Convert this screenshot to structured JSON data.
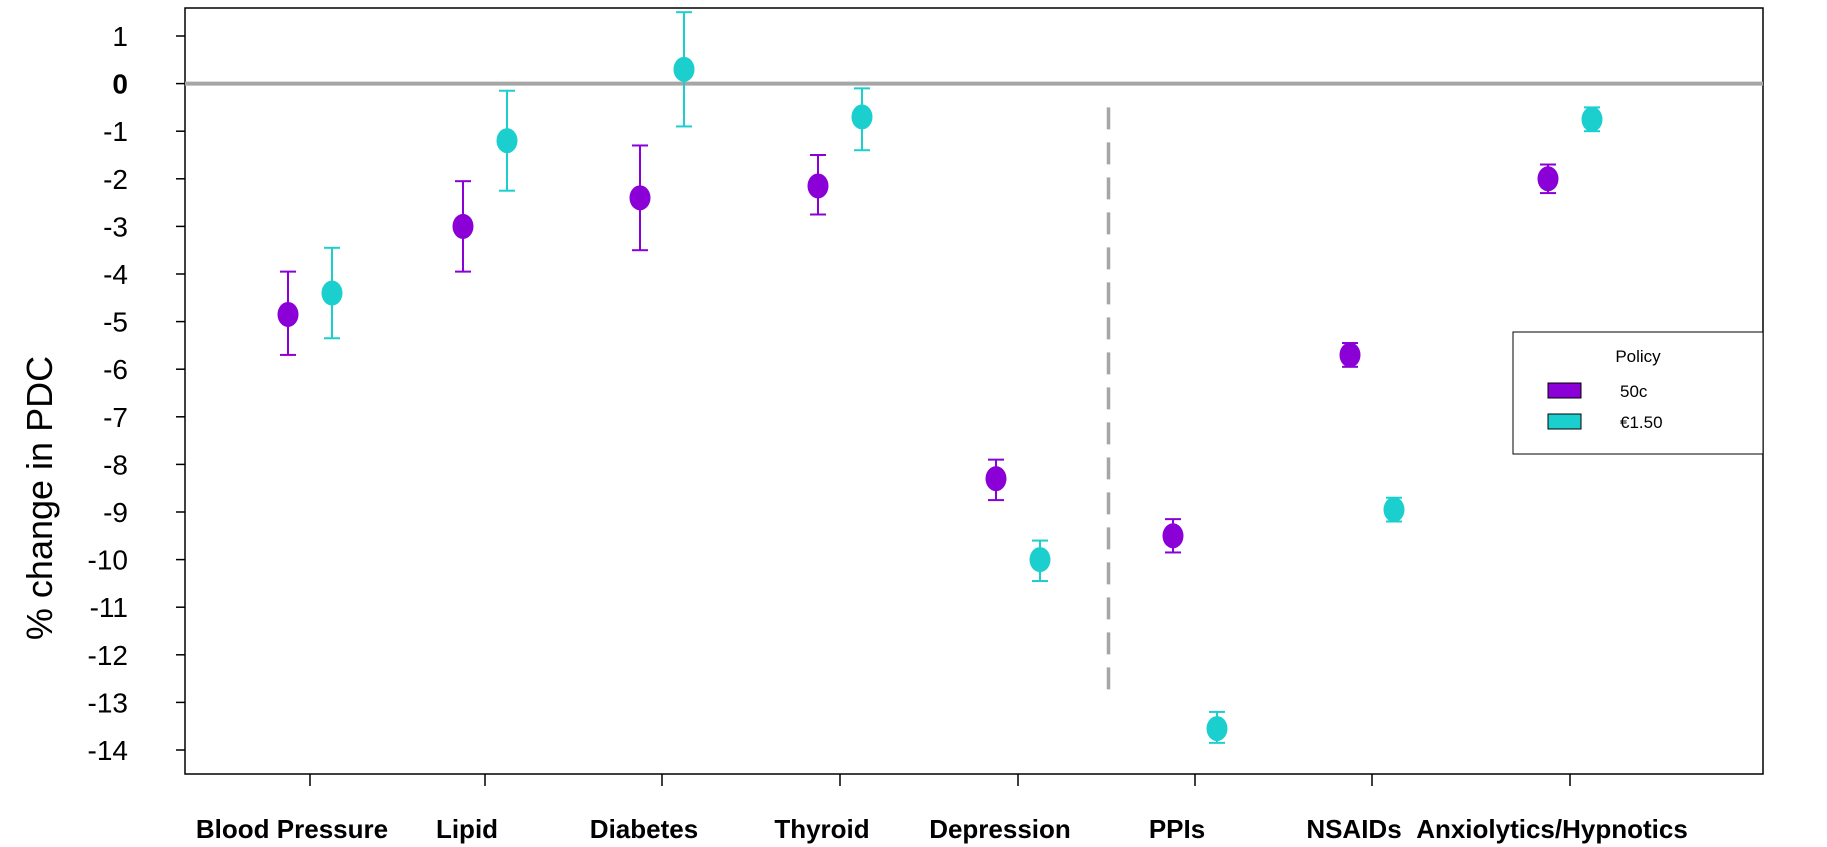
{
  "chart_data": {
    "type": "scatter",
    "subtype": "dot-with-error-bars",
    "ylabel": "% change in PDC",
    "xlabel": "",
    "ylim": [
      -14.5,
      1.6
    ],
    "yticks": [
      1,
      0,
      -1,
      -2,
      -3,
      -4,
      -5,
      -6,
      -7,
      -8,
      -9,
      -10,
      -11,
      -12,
      -13,
      -14
    ],
    "ytick_labels": [
      "1",
      "0",
      "-1",
      "-2",
      "-3",
      "-4",
      "-5",
      "-6",
      "-7",
      "-8",
      "-9",
      "-10",
      "-11",
      "-12",
      "-13",
      "-14"
    ],
    "zero_line": true,
    "divider_after_category": "Depression",
    "grid": false,
    "categories": [
      "Blood Pressure",
      "Lipid",
      "Diabetes",
      "Thyroid",
      "Depression",
      "PPIs",
      "NSAIDs",
      "Anxiolytics/Hypnotics"
    ],
    "legend": {
      "title": "Policy",
      "placement": "right"
    },
    "series": [
      {
        "name": "50c",
        "color": "#8b00d6",
        "values": [
          -4.85,
          -3.0,
          -2.4,
          -2.15,
          -8.3,
          -9.5,
          -5.7,
          -2.0
        ],
        "lower": [
          -5.7,
          -3.95,
          -3.5,
          -2.75,
          -8.75,
          -9.85,
          -5.95,
          -2.3
        ],
        "upper": [
          -3.95,
          -2.05,
          -1.3,
          -1.5,
          -7.9,
          -9.15,
          -5.45,
          -1.7
        ]
      },
      {
        "name": "€1.50",
        "color": "#1ccfcf",
        "values": [
          -4.4,
          -1.2,
          0.3,
          -0.7,
          -10.0,
          -13.55,
          -8.95,
          -0.75
        ],
        "lower": [
          -5.35,
          -2.25,
          -0.9,
          -1.4,
          -10.45,
          -13.85,
          -9.2,
          -1.0
        ],
        "upper": [
          -3.45,
          -0.15,
          1.5,
          -0.1,
          -9.6,
          -13.2,
          -8.7,
          -0.5
        ]
      }
    ]
  }
}
